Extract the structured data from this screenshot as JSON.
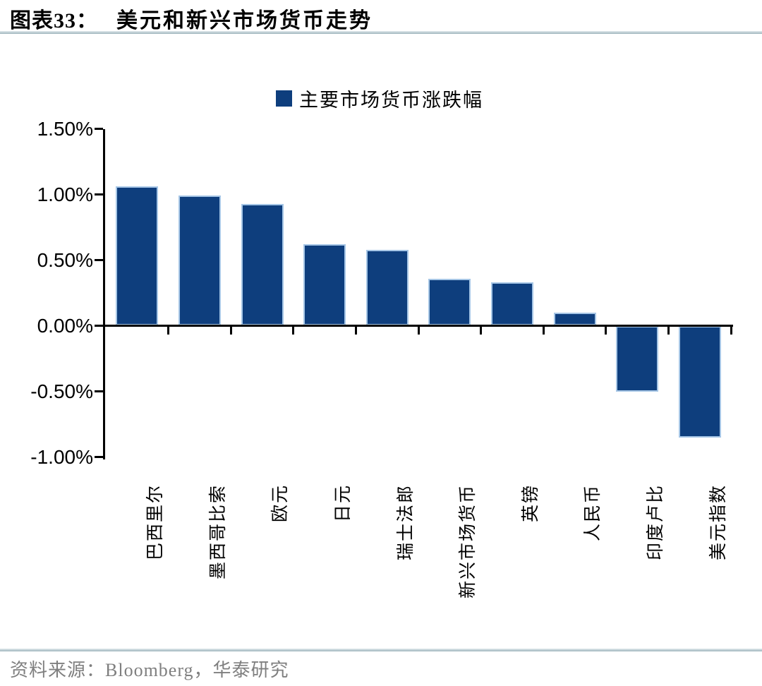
{
  "header": {
    "figure_label": "图表33：",
    "title": "美元和新兴市场货币走势"
  },
  "legend": {
    "label": "主要市场货币涨跌幅"
  },
  "chart_data": {
    "type": "bar",
    "title": "主要市场货币涨跌幅",
    "categories": [
      "巴西里尔",
      "墨西哥比索",
      "欧元",
      "日元",
      "瑞士法郎",
      "新兴市场货币",
      "英镑",
      "人民币",
      "印度卢比",
      "美元指数"
    ],
    "values": [
      1.06,
      0.99,
      0.93,
      0.62,
      0.58,
      0.36,
      0.33,
      0.1,
      -0.5,
      -0.85
    ],
    "unit": "%",
    "ylim": [
      -1.0,
      1.5
    ],
    "yticks": [
      1.5,
      1.0,
      0.5,
      0.0,
      -0.5,
      -1.0
    ],
    "ytick_labels": [
      "1.50%",
      "1.00%",
      "0.50%",
      "0.00%",
      "-0.50%",
      "-1.00%"
    ],
    "legend_position": "top-center",
    "grid": false
  },
  "colors": {
    "bar": "#0e3e7d",
    "bar_border": "#a6c6e6",
    "axis": "#000000",
    "source_text": "#7f7f7f"
  },
  "footer": {
    "source": "资料来源：Bloomberg，华泰研究"
  }
}
